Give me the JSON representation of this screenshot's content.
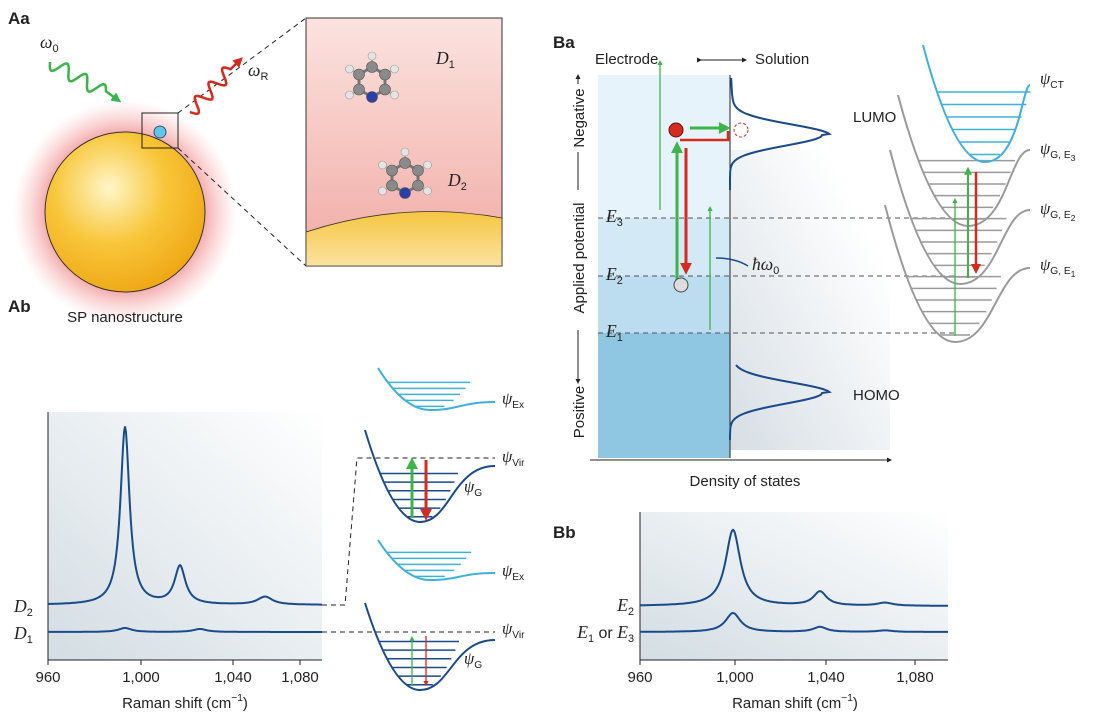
{
  "panel_Aa": {
    "label": "Aa",
    "incident": [
      {
        "symbol": "ω",
        "sub": "0"
      }
    ],
    "scattered": [
      {
        "symbol": "ω",
        "sub": "R"
      }
    ],
    "inset": [
      [
        {
          "symbol": "D",
          "sub": "1"
        }
      ],
      [
        {
          "symbol": "D",
          "sub": "2"
        }
      ]
    ],
    "caption": "SP nanostructure"
  },
  "panel_Ab": {
    "label": "Ab",
    "spectra": [
      [
        {
          "symbol": "D",
          "sub": "2"
        }
      ],
      [
        {
          "symbol": "D",
          "sub": "1"
        }
      ]
    ],
    "x_ticks": [
      "960",
      "1,000",
      "1,040",
      "1,080"
    ],
    "x_label": [
      {
        "text": "Raman shift (cm",
        "sup": "−1"
      },
      {
        "text": ")"
      }
    ],
    "diagrams": [
      {
        "excited": [
          {
            "symbol": "ψ",
            "sub": "Ex"
          }
        ],
        "virtual": [
          {
            "symbol": "ψ",
            "sub": "Vir"
          }
        ],
        "ground": [
          {
            "symbol": "ψ",
            "sub": "G"
          }
        ]
      },
      {
        "excited": [
          {
            "symbol": "ψ",
            "sub": "Ex"
          }
        ],
        "virtual": [
          {
            "symbol": "ψ",
            "sub": "Vir"
          }
        ],
        "ground": [
          {
            "symbol": "ψ",
            "sub": "G"
          }
        ]
      }
    ]
  },
  "panel_Ba": {
    "label": "Ba",
    "electrode": "Electrode",
    "solution": "Solution",
    "axis_top": "Negative",
    "axis_label": "Applied potential",
    "axis_bottom": "Positive",
    "x_label": "Density of states",
    "levels": [
      [
        {
          "symbol": "E",
          "sub": "3"
        }
      ],
      [
        {
          "symbol": "E",
          "sub": "2"
        }
      ],
      [
        {
          "symbol": "E",
          "sub": "1"
        }
      ]
    ],
    "photon": [
      {
        "symbol": "ħω",
        "sub": "0"
      }
    ],
    "lumo": "LUMO",
    "homo": "HOMO",
    "charge_transfer": [
      {
        "symbol": "ψ",
        "sub": "CT"
      }
    ],
    "ground_states": [
      [
        {
          "symbol": "ψ",
          "sub": "G, E",
          "subsub": "3"
        }
      ],
      [
        {
          "symbol": "ψ",
          "sub": "G, E",
          "subsub": "2"
        }
      ],
      [
        {
          "symbol": "ψ",
          "sub": "G, E",
          "subsub": "1"
        }
      ]
    ]
  },
  "panel_Bb": {
    "label": "Bb",
    "spectra": [
      [
        {
          "symbol": "E",
          "sub": "2"
        }
      ],
      [
        {
          "symbol": "E",
          "sub": "1"
        },
        {
          "text": " or "
        },
        {
          "symbol": "E",
          "sub": "3"
        }
      ]
    ],
    "x_ticks": [
      "960",
      "1,000",
      "1,040",
      "1,080"
    ],
    "x_label": [
      {
        "text": "Raman shift (cm",
        "sup": "−1"
      },
      {
        "text": ")"
      }
    ]
  }
}
